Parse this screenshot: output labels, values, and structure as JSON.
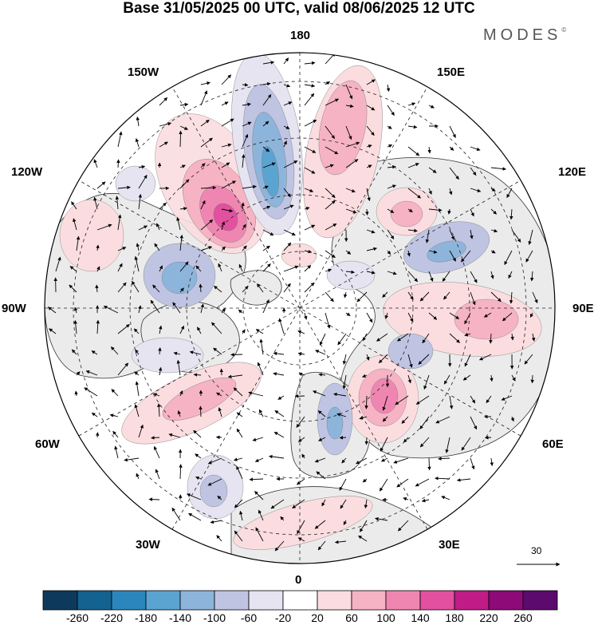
{
  "title": "Base 31/05/2025 00 UTC, valid 08/06/2025 12 UTC",
  "brand": "MODES",
  "brand_mark": "©",
  "longitude_labels": {
    "180": "180",
    "150W": "150W",
    "150E": "150E",
    "120W": "120W",
    "120E": "120E",
    "90W": "90W",
    "90E": "90E",
    "60W": "60W",
    "60E": "60E",
    "30W": "30W",
    "30E": "30E",
    "0": "0"
  },
  "reference_vector": {
    "label": "30",
    "icon": "arrow-right-icon"
  },
  "colorbar": {
    "ticks": [
      "-260",
      "-220",
      "-180",
      "-140",
      "-100",
      "-60",
      "-20",
      "20",
      "60",
      "100",
      "140",
      "180",
      "220",
      "260"
    ],
    "colors": [
      "#0d3a5c",
      "#14628f",
      "#2b86bd",
      "#5ba3d0",
      "#8db5db",
      "#bfc4e2",
      "#e6e4f1",
      "#ffffff",
      "#fbdde0",
      "#f6b3c4",
      "#ef86b2",
      "#e2509f",
      "#bf1c87",
      "#8e0a78",
      "#5c0a6e"
    ]
  },
  "colors": {
    "land_fill": "#ebebeb",
    "coast": "#333333",
    "graticule": "#222222",
    "positive_weak": "#fbdde0",
    "positive_mid": "#f6b3c4",
    "positive_strong": "#ef86b2",
    "positive_max": "#e2509f",
    "negative_weak": "#e6e4f1",
    "negative_mid": "#bfc4e2",
    "negative_strong": "#8db5db",
    "negative_max": "#5ba3d0"
  }
}
